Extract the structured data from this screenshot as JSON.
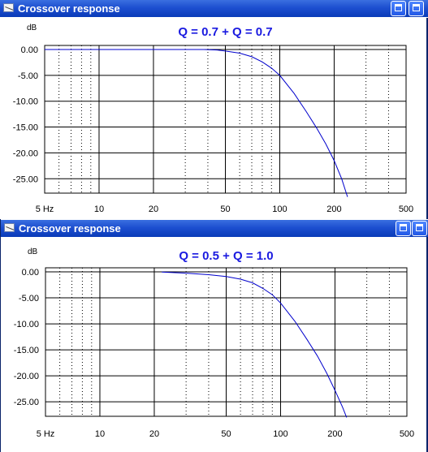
{
  "windows": [
    {
      "title": "Crossover response",
      "chart_title": "Q = 0.7 + Q = 0.7",
      "chart_data": {
        "type": "line",
        "title": "Q = 0.7 + Q = 0.7",
        "xlabel": "",
        "ylabel": "dB",
        "x_scale": "log",
        "xlim": [
          5,
          500
        ],
        "ylim": [
          -29,
          0.5
        ],
        "x_tick_labels": [
          "5 Hz",
          "10",
          "20",
          "50",
          "100",
          "200",
          "500"
        ],
        "y_tick_labels": [
          "0.00",
          "-5.00",
          "-10.00",
          "-15.00",
          "-20.00",
          "-25.00"
        ],
        "series": [
          {
            "x": [
              5,
              30,
              38,
              45,
              50,
              55,
              60,
              70,
              80,
              90,
              100,
              120,
              140,
              160,
              180,
              200,
              220,
              237
            ],
            "y": [
              0,
              0,
              0,
              -0.1,
              -0.3,
              -0.5,
              -0.7,
              -1.4,
              -2.4,
              -3.6,
              -5.0,
              -8.5,
              -12.0,
              -15.2,
              -18.3,
              -21.5,
              -25.0,
              -28.5
            ]
          }
        ],
        "color": "#0000cc",
        "grid": true
      }
    },
    {
      "title": "Crossover response",
      "chart_title": "Q = 0.5 + Q = 1.0",
      "chart_data": {
        "type": "line",
        "title": "Q = 0.5 + Q = 1.0",
        "xlabel": "",
        "ylabel": "dB",
        "x_scale": "log",
        "xlim": [
          5,
          500
        ],
        "ylim": [
          -29,
          0.5
        ],
        "x_tick_labels": [
          "5 Hz",
          "10",
          "20",
          "50",
          "100",
          "200",
          "500"
        ],
        "y_tick_labels": [
          "0.00",
          "-5.00",
          "-10.00",
          "-15.00",
          "-20.00",
          "-25.00"
        ],
        "series": [
          {
            "x": [
              22,
              30,
              40,
              50,
              60,
              70,
              80,
              90,
              100,
              120,
              140,
              160,
              180,
              200,
              220,
              232
            ],
            "y": [
              -0.05,
              -0.25,
              -0.55,
              -0.9,
              -1.4,
              -2.1,
              -3.2,
              -4.4,
              -6.0,
              -9.5,
              -13.0,
              -16.2,
              -19.5,
              -22.8,
              -26.0,
              -28.0
            ]
          }
        ],
        "color": "#0000cc",
        "grid": true
      }
    }
  ],
  "title_color": "#1a1ae0",
  "curve_color": "#0000cc"
}
